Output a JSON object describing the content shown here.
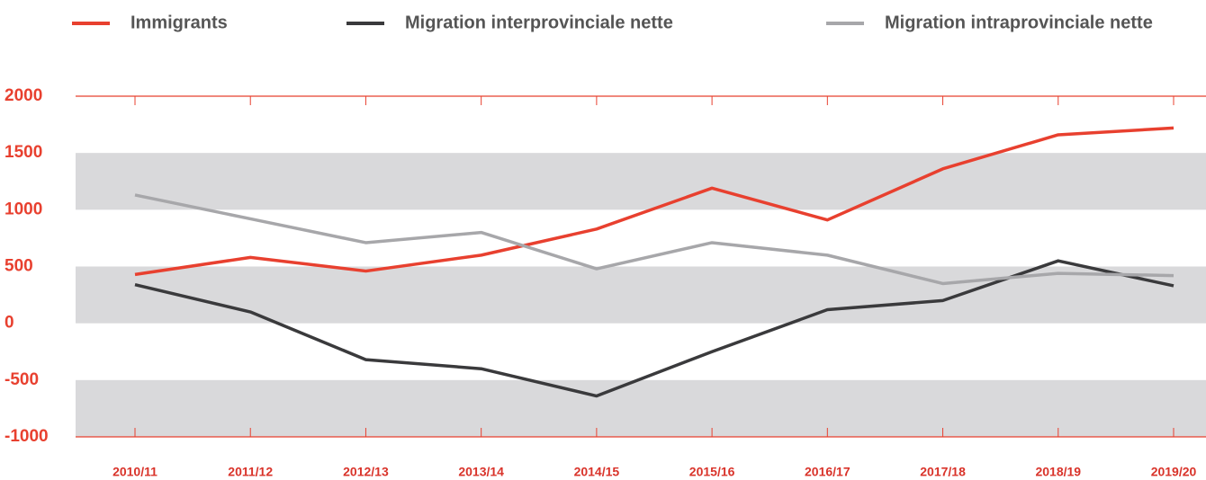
{
  "chart_data": {
    "type": "line",
    "categories": [
      "2010/11",
      "2011/12",
      "2012/13",
      "2013/14",
      "2014/15",
      "2015/16",
      "2016/17",
      "2017/18",
      "2018/19",
      "2019/20"
    ],
    "series": [
      {
        "name": "Immigrants",
        "color": "#e8402f",
        "values": [
          430,
          580,
          460,
          600,
          830,
          1190,
          910,
          1360,
          1660,
          1720
        ]
      },
      {
        "name": "Migration interprovinciale nette",
        "color": "#3a3a3c",
        "values": [
          340,
          100,
          -320,
          -400,
          -640,
          -250,
          120,
          200,
          550,
          330
        ]
      },
      {
        "name": "Migration intraprovinciale nette",
        "color": "#a7a7aa",
        "values": [
          1130,
          920,
          710,
          800,
          480,
          710,
          600,
          350,
          440,
          420
        ]
      }
    ],
    "ylim": [
      -1000,
      2000
    ],
    "yticks": [
      -1000,
      -500,
      0,
      500,
      1000,
      1500,
      2000
    ],
    "grid": true,
    "legend": "top"
  }
}
